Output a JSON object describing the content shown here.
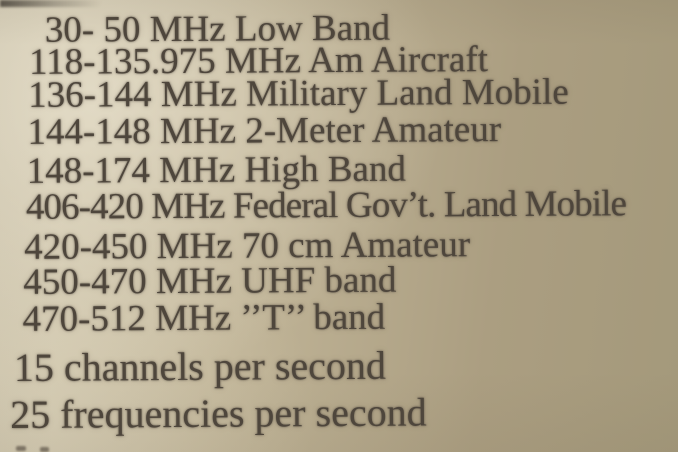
{
  "page": {
    "bands": [
      {
        "text": "30- 50 MHz Low Band"
      },
      {
        "text": "118-135.975 MHz Am Aircraft"
      },
      {
        "text": "136-144 MHz Military Land Mobile"
      },
      {
        "text": "144-148 MHz 2-Meter Amateur"
      },
      {
        "text": "148-174 MHz High Band"
      },
      {
        "text": "406-420 MHz Federal Gov’t. Land Mobile"
      },
      {
        "text": "420-450 MHz 70 cm Amateur"
      },
      {
        "text": "450-470 MHz UHF band"
      },
      {
        "text": "470-512 MHz ’’T’’ band"
      }
    ],
    "scan_rates": [
      {
        "text": "15 channels per second"
      },
      {
        "text": "25 frequencies per second"
      }
    ],
    "colors": {
      "paper_light": "#d8d1bb",
      "paper_dark": "#a4997b",
      "ink": "#4e463c"
    }
  }
}
